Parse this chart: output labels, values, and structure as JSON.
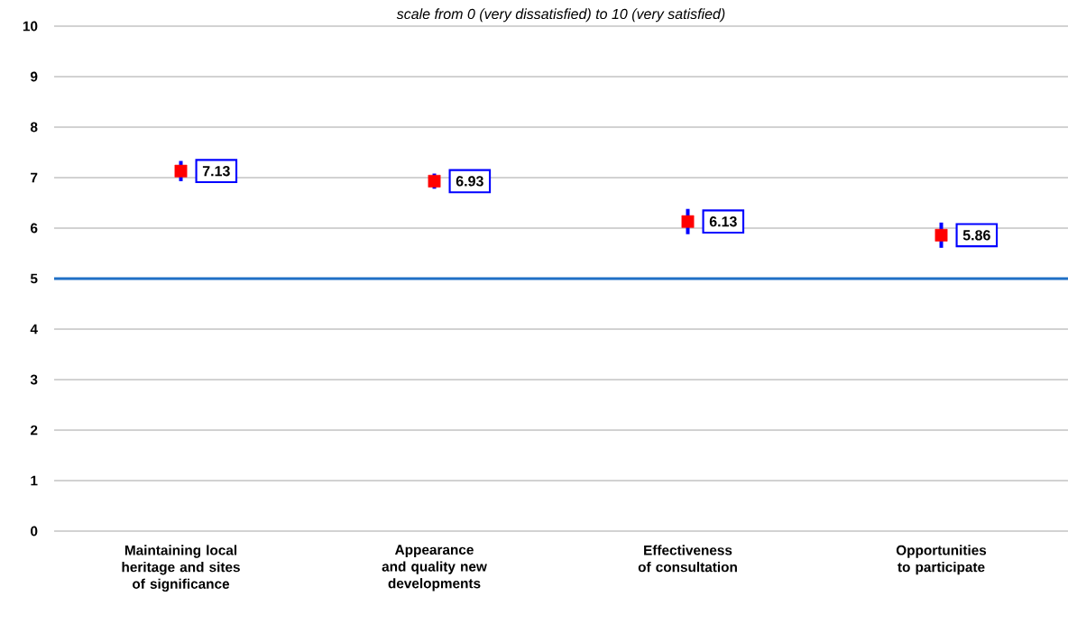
{
  "chart_data": {
    "type": "scatter",
    "subtitle": "scale from 0 (very dissatisfied) to 10 (very satisfied)",
    "categories": [
      "Maintaining local heritage and sites of significance",
      "Appearance and quality new developments",
      "Effectiveness of consultation",
      "Opportunities to participate"
    ],
    "values": [
      7.13,
      6.93,
      6.13,
      5.86
    ],
    "errors": [
      0.2,
      0.15,
      0.25,
      0.25
    ],
    "color": "#ff0000",
    "marker": "square",
    "data_labels": true,
    "ylim": [
      0,
      10
    ],
    "yticks": [
      0,
      1,
      2,
      3,
      4,
      5,
      6,
      7,
      8,
      9,
      10
    ],
    "grid": "y",
    "ref_lines": [
      {
        "axis": "y",
        "value": 5,
        "color": "#1f6fc5"
      }
    ]
  }
}
